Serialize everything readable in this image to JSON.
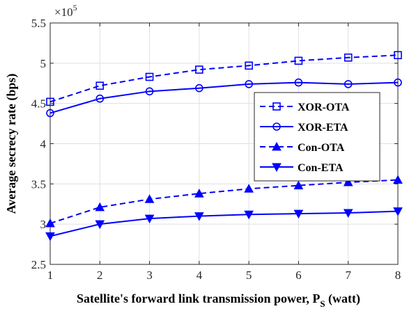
{
  "chart_data": {
    "type": "line",
    "xlabel_main": "Satellite's forward link transmission power, P",
    "xlabel_sub": "S",
    "xlabel_unit": " (watt)",
    "ylabel": "Average secrecy rate (bps)",
    "y_exponent_prefix": "×10",
    "y_exponent_power": "5",
    "x": [
      1,
      2,
      3,
      4,
      5,
      6,
      7,
      8
    ],
    "xlim": [
      1,
      8
    ],
    "ylim": [
      2.5,
      5.5
    ],
    "x_ticks": [
      "1",
      "2",
      "3",
      "4",
      "5",
      "6",
      "7",
      "8"
    ],
    "y_ticks": [
      "2.5",
      "3",
      "3.5",
      "4",
      "4.5",
      "5",
      "5.5"
    ],
    "grid": true,
    "legend_position": "right",
    "series": [
      {
        "name": "XOR-OTA",
        "color": "#0000ff",
        "line": "dashed",
        "marker": "square",
        "values": [
          4.52,
          4.72,
          4.83,
          4.92,
          4.97,
          5.03,
          5.07,
          5.1
        ]
      },
      {
        "name": "XOR-ETA",
        "color": "#0000ff",
        "line": "solid",
        "marker": "circle",
        "values": [
          4.38,
          4.56,
          4.65,
          4.69,
          4.74,
          4.76,
          4.74,
          4.76
        ]
      },
      {
        "name": "Con-OTA",
        "color": "#0000ff",
        "line": "dashed",
        "marker": "triangle-up",
        "values": [
          3.01,
          3.21,
          3.31,
          3.38,
          3.44,
          3.48,
          3.52,
          3.55
        ]
      },
      {
        "name": "Con-ETA",
        "color": "#0000ff",
        "line": "solid",
        "marker": "triangle-down",
        "values": [
          2.85,
          3.0,
          3.07,
          3.1,
          3.12,
          3.13,
          3.14,
          3.16
        ]
      }
    ]
  }
}
